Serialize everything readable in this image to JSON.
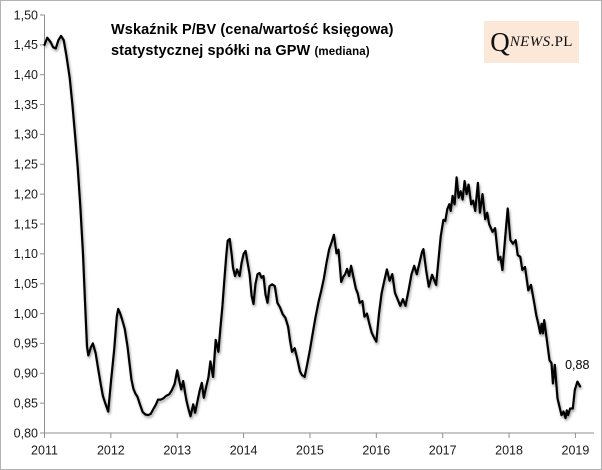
{
  "title": {
    "line1": "Wskaźnik P/BV (cena/wartość księgowa)",
    "line2_main": "statystycznej spółki na GPW",
    "line2_paren": "(mediana)"
  },
  "logo": {
    "q": "Q",
    "news": "NEWS",
    "pl": ".PL",
    "bg_color": "#fbe8d9",
    "text_color": "#111111"
  },
  "annotation": {
    "text": "0,88"
  },
  "colors": {
    "line": "#000000",
    "axis": "#8f8f8f",
    "tick_label": "#1a1a1a",
    "background": "#ffffff",
    "frame_border": "#b3b3b3"
  },
  "chart_data": {
    "type": "line",
    "title": "Wskaźnik P/BV (cena/wartość księgowa) statystycznej spółki na GPW (mediana)",
    "xlabel": "",
    "ylabel": "",
    "grid": false,
    "legend": null,
    "xlim": [
      2011,
      2019.28
    ],
    "ylim": [
      0.8,
      1.5
    ],
    "x_ticks": [
      {
        "v": 2011,
        "label": "2011"
      },
      {
        "v": 2012,
        "label": "2012"
      },
      {
        "v": 2013,
        "label": "2013"
      },
      {
        "v": 2014,
        "label": "2014"
      },
      {
        "v": 2015,
        "label": "2015"
      },
      {
        "v": 2016,
        "label": "2016"
      },
      {
        "v": 2017,
        "label": "2017"
      },
      {
        "v": 2018,
        "label": "2018"
      },
      {
        "v": 2019,
        "label": "2019"
      }
    ],
    "y_ticks": [
      {
        "v": 1.5,
        "label": "1,50"
      },
      {
        "v": 1.45,
        "label": "1,45"
      },
      {
        "v": 1.4,
        "label": "1,40"
      },
      {
        "v": 1.35,
        "label": "1,35"
      },
      {
        "v": 1.3,
        "label": "1,30"
      },
      {
        "v": 1.25,
        "label": "1,25"
      },
      {
        "v": 1.2,
        "label": "1,20"
      },
      {
        "v": 1.15,
        "label": "1,15"
      },
      {
        "v": 1.1,
        "label": "1,10"
      },
      {
        "v": 1.05,
        "label": "1,05"
      },
      {
        "v": 1.0,
        "label": "1,00"
      },
      {
        "v": 0.95,
        "label": "0,95"
      },
      {
        "v": 0.9,
        "label": "0,90"
      },
      {
        "v": 0.85,
        "label": "0,85"
      },
      {
        "v": 0.8,
        "label": "0,80"
      }
    ],
    "last_point_label": "0,88",
    "series": [
      {
        "name": "P/BV mediana GPW",
        "points": [
          [
            2011.0,
            1.45
          ],
          [
            2011.04,
            1.462
          ],
          [
            2011.09,
            1.455
          ],
          [
            2011.13,
            1.446
          ],
          [
            2011.17,
            1.444
          ],
          [
            2011.21,
            1.458
          ],
          [
            2011.25,
            1.465
          ],
          [
            2011.29,
            1.458
          ],
          [
            2011.33,
            1.432
          ],
          [
            2011.38,
            1.395
          ],
          [
            2011.42,
            1.35
          ],
          [
            2011.46,
            1.3
          ],
          [
            2011.5,
            1.245
          ],
          [
            2011.54,
            1.18
          ],
          [
            2011.58,
            1.1
          ],
          [
            2011.61,
            1.02
          ],
          [
            2011.64,
            0.945
          ],
          [
            2011.66,
            0.93
          ],
          [
            2011.7,
            0.944
          ],
          [
            2011.73,
            0.95
          ],
          [
            2011.77,
            0.934
          ],
          [
            2011.81,
            0.906
          ],
          [
            2011.85,
            0.88
          ],
          [
            2011.88,
            0.862
          ],
          [
            2011.92,
            0.848
          ],
          [
            2011.96,
            0.836
          ],
          [
            2012.0,
            0.885
          ],
          [
            2012.05,
            0.94
          ],
          [
            2012.09,
            0.995
          ],
          [
            2012.11,
            1.008
          ],
          [
            2012.14,
            1.0
          ],
          [
            2012.17,
            0.99
          ],
          [
            2012.21,
            0.974
          ],
          [
            2012.25,
            0.945
          ],
          [
            2012.28,
            0.918
          ],
          [
            2012.31,
            0.89
          ],
          [
            2012.34,
            0.874
          ],
          [
            2012.37,
            0.866
          ],
          [
            2012.4,
            0.861
          ],
          [
            2012.44,
            0.847
          ],
          [
            2012.48,
            0.835
          ],
          [
            2012.52,
            0.831
          ],
          [
            2012.56,
            0.83
          ],
          [
            2012.6,
            0.832
          ],
          [
            2012.64,
            0.84
          ],
          [
            2012.68,
            0.848
          ],
          [
            2012.71,
            0.856
          ],
          [
            2012.75,
            0.856
          ],
          [
            2012.79,
            0.858
          ],
          [
            2012.83,
            0.862
          ],
          [
            2012.88,
            0.865
          ],
          [
            2012.92,
            0.872
          ],
          [
            2012.96,
            0.882
          ],
          [
            2013.0,
            0.905
          ],
          [
            2013.03,
            0.888
          ],
          [
            2013.06,
            0.873
          ],
          [
            2013.09,
            0.887
          ],
          [
            2013.12,
            0.866
          ],
          [
            2013.14,
            0.854
          ],
          [
            2013.17,
            0.84
          ],
          [
            2013.2,
            0.828
          ],
          [
            2013.24,
            0.848
          ],
          [
            2013.27,
            0.834
          ],
          [
            2013.31,
            0.856
          ],
          [
            2013.34,
            0.872
          ],
          [
            2013.37,
            0.884
          ],
          [
            2013.4,
            0.859
          ],
          [
            2013.44,
            0.879
          ],
          [
            2013.47,
            0.893
          ],
          [
            2013.5,
            0.92
          ],
          [
            2013.54,
            0.894
          ],
          [
            2013.58,
            0.956
          ],
          [
            2013.62,
            0.936
          ],
          [
            2013.65,
            0.976
          ],
          [
            2013.68,
            1.012
          ],
          [
            2013.71,
            1.055
          ],
          [
            2013.74,
            1.098
          ],
          [
            2013.76,
            1.122
          ],
          [
            2013.79,
            1.125
          ],
          [
            2013.82,
            1.1
          ],
          [
            2013.84,
            1.077
          ],
          [
            2013.87,
            1.063
          ],
          [
            2013.9,
            1.074
          ],
          [
            2013.94,
            1.063
          ],
          [
            2013.97,
            1.085
          ],
          [
            2014.0,
            1.1
          ],
          [
            2014.03,
            1.105
          ],
          [
            2014.06,
            1.085
          ],
          [
            2014.09,
            1.066
          ],
          [
            2014.12,
            1.03
          ],
          [
            2014.15,
            1.016
          ],
          [
            2014.18,
            1.05
          ],
          [
            2014.21,
            1.066
          ],
          [
            2014.24,
            1.068
          ],
          [
            2014.27,
            1.06
          ],
          [
            2014.3,
            1.063
          ],
          [
            2014.33,
            1.032
          ],
          [
            2014.36,
            1.018
          ],
          [
            2014.39,
            1.046
          ],
          [
            2014.43,
            1.049
          ],
          [
            2014.47,
            1.046
          ],
          [
            2014.51,
            1.018
          ],
          [
            2014.55,
            1.01
          ],
          [
            2014.59,
            0.999
          ],
          [
            2014.63,
            0.993
          ],
          [
            2014.67,
            0.978
          ],
          [
            2014.7,
            0.955
          ],
          [
            2014.73,
            0.936
          ],
          [
            2014.77,
            0.942
          ],
          [
            2014.81,
            0.924
          ],
          [
            2014.85,
            0.903
          ],
          [
            2014.88,
            0.897
          ],
          [
            2014.92,
            0.894
          ],
          [
            2014.96,
            0.916
          ],
          [
            2015.0,
            0.94
          ],
          [
            2015.04,
            0.966
          ],
          [
            2015.08,
            0.992
          ],
          [
            2015.13,
            1.02
          ],
          [
            2015.17,
            1.038
          ],
          [
            2015.21,
            1.059
          ],
          [
            2015.25,
            1.086
          ],
          [
            2015.29,
            1.108
          ],
          [
            2015.33,
            1.121
          ],
          [
            2015.36,
            1.132
          ],
          [
            2015.4,
            1.101
          ],
          [
            2015.43,
            1.107
          ],
          [
            2015.47,
            1.053
          ],
          [
            2015.5,
            1.061
          ],
          [
            2015.53,
            1.066
          ],
          [
            2015.56,
            1.075
          ],
          [
            2015.59,
            1.063
          ],
          [
            2015.62,
            1.08
          ],
          [
            2015.66,
            1.058
          ],
          [
            2015.69,
            1.042
          ],
          [
            2015.72,
            1.034
          ],
          [
            2015.75,
            1.018
          ],
          [
            2015.79,
            1.021
          ],
          [
            2015.82,
            0.995
          ],
          [
            2015.86,
            1.0
          ],
          [
            2015.89,
            0.985
          ],
          [
            2015.93,
            0.968
          ],
          [
            2015.96,
            0.961
          ],
          [
            2016.0,
            0.953
          ],
          [
            2016.04,
            1.0
          ],
          [
            2016.08,
            1.034
          ],
          [
            2016.12,
            1.055
          ],
          [
            2016.16,
            1.074
          ],
          [
            2016.2,
            1.055
          ],
          [
            2016.24,
            1.066
          ],
          [
            2016.28,
            1.035
          ],
          [
            2016.32,
            1.024
          ],
          [
            2016.36,
            1.013
          ],
          [
            2016.4,
            1.024
          ],
          [
            2016.44,
            1.013
          ],
          [
            2016.49,
            1.041
          ],
          [
            2016.53,
            1.066
          ],
          [
            2016.57,
            1.08
          ],
          [
            2016.61,
            1.066
          ],
          [
            2016.65,
            1.085
          ],
          [
            2016.69,
            1.104
          ],
          [
            2016.71,
            1.108
          ],
          [
            2016.75,
            1.073
          ],
          [
            2016.79,
            1.045
          ],
          [
            2016.84,
            1.065
          ],
          [
            2016.9,
            1.048
          ],
          [
            2016.97,
            1.129
          ],
          [
            2017.01,
            1.157
          ],
          [
            2017.04,
            1.155
          ],
          [
            2017.07,
            1.175
          ],
          [
            2017.1,
            1.183
          ],
          [
            2017.12,
            1.172
          ],
          [
            2017.15,
            1.197
          ],
          [
            2017.18,
            1.183
          ],
          [
            2017.21,
            1.228
          ],
          [
            2017.24,
            1.194
          ],
          [
            2017.27,
            1.205
          ],
          [
            2017.3,
            1.191
          ],
          [
            2017.33,
            1.222
          ],
          [
            2017.36,
            1.2
          ],
          [
            2017.39,
            1.216
          ],
          [
            2017.43,
            1.183
          ],
          [
            2017.46,
            1.189
          ],
          [
            2017.49,
            1.172
          ],
          [
            2017.53,
            1.219
          ],
          [
            2017.56,
            1.169
          ],
          [
            2017.6,
            1.2
          ],
          [
            2017.64,
            1.158
          ],
          [
            2017.67,
            1.169
          ],
          [
            2017.7,
            1.15
          ],
          [
            2017.75,
            1.137
          ],
          [
            2017.79,
            1.143
          ],
          [
            2017.84,
            1.09
          ],
          [
            2017.87,
            1.095
          ],
          [
            2017.9,
            1.073
          ],
          [
            2017.98,
            1.176
          ],
          [
            2018.02,
            1.123
          ],
          [
            2018.06,
            1.117
          ],
          [
            2018.1,
            1.123
          ],
          [
            2018.13,
            1.098
          ],
          [
            2018.17,
            1.095
          ],
          [
            2018.2,
            1.073
          ],
          [
            2018.24,
            1.078
          ],
          [
            2018.29,
            1.039
          ],
          [
            2018.33,
            1.048
          ],
          [
            2018.38,
            1.017
          ],
          [
            2018.41,
            0.997
          ],
          [
            2018.44,
            0.983
          ],
          [
            2018.47,
            0.967
          ],
          [
            2018.49,
            0.983
          ],
          [
            2018.51,
            0.967
          ],
          [
            2018.53,
            0.989
          ],
          [
            2018.57,
            0.955
          ],
          [
            2018.61,
            0.922
          ],
          [
            2018.64,
            0.917
          ],
          [
            2018.66,
            0.883
          ],
          [
            2018.69,
            0.914
          ],
          [
            2018.73,
            0.858
          ],
          [
            2018.76,
            0.844
          ],
          [
            2018.79,
            0.83
          ],
          [
            2018.82,
            0.836
          ],
          [
            2018.85,
            0.825
          ],
          [
            2018.87,
            0.838
          ],
          [
            2018.89,
            0.83
          ],
          [
            2018.92,
            0.841
          ],
          [
            2018.96,
            0.841
          ],
          [
            2018.99,
            0.872
          ],
          [
            2019.03,
            0.886
          ],
          [
            2019.07,
            0.878
          ]
        ]
      }
    ]
  }
}
